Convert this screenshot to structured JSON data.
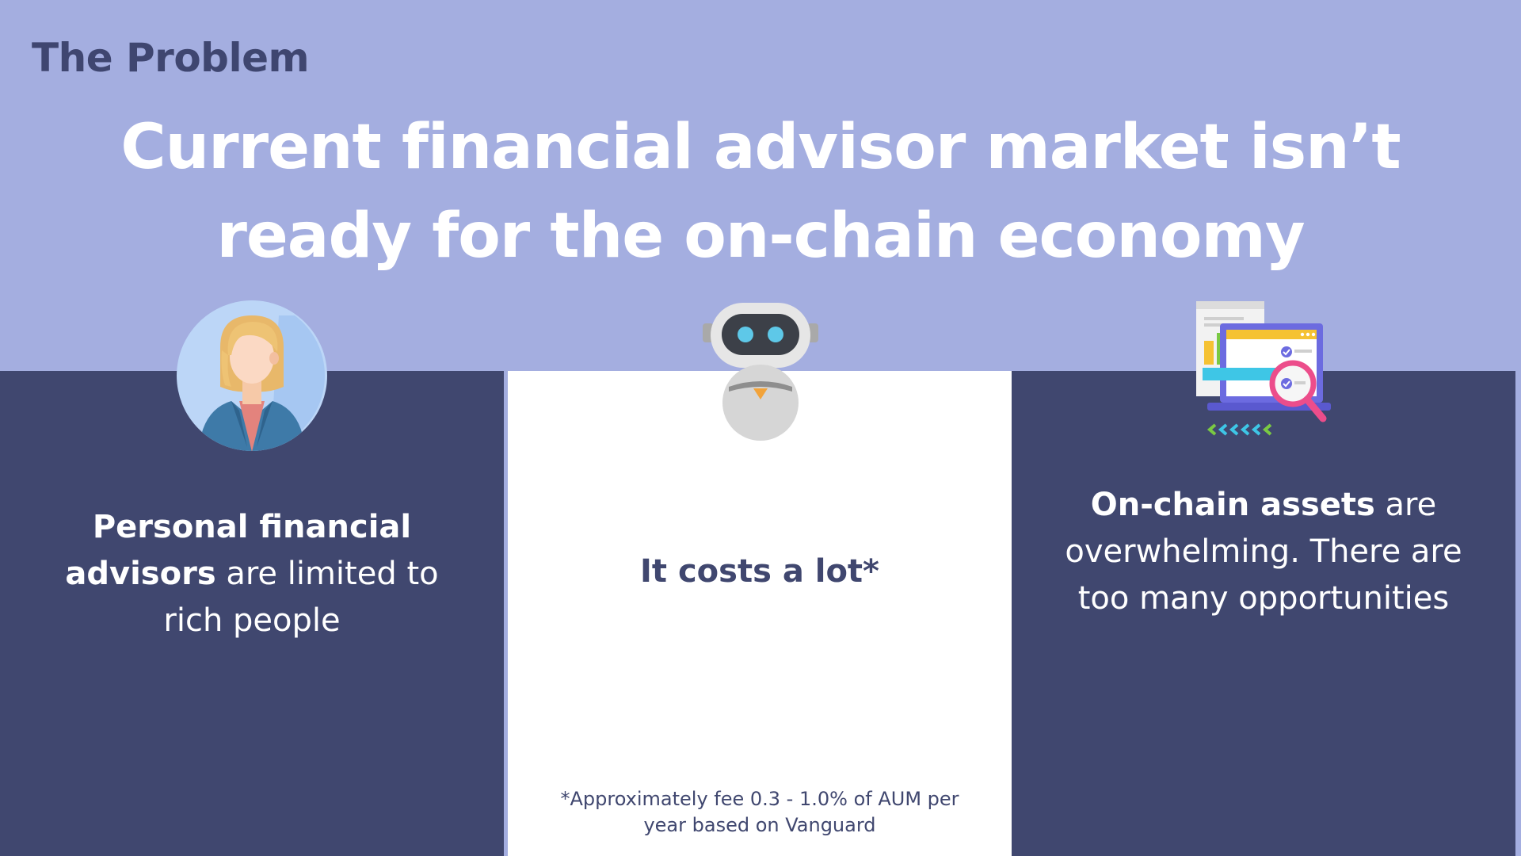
{
  "header": {
    "section_label": "The Problem",
    "headline": "Current financial advisor market isn’t ready for the on-chain economy"
  },
  "panels": {
    "left": {
      "icon": "advisor-avatar-icon",
      "bold": "Personal financial advisors",
      "rest": " are limited to rich people"
    },
    "middle": {
      "icon": "robot-icon",
      "text": "It costs a lot*",
      "footnote": "*Approximately fee 0.3 - 1.0% of AUM per year based on Vanguard"
    },
    "right": {
      "icon": "analytics-dashboard-icon",
      "bold": "On-chain assets",
      "rest": " are overwhelming. There are too many opportunities"
    }
  },
  "colors": {
    "background": "#a4aee0",
    "panel_dark": "#40476f",
    "panel_light": "#ffffff",
    "headline_text": "#ffffff"
  }
}
